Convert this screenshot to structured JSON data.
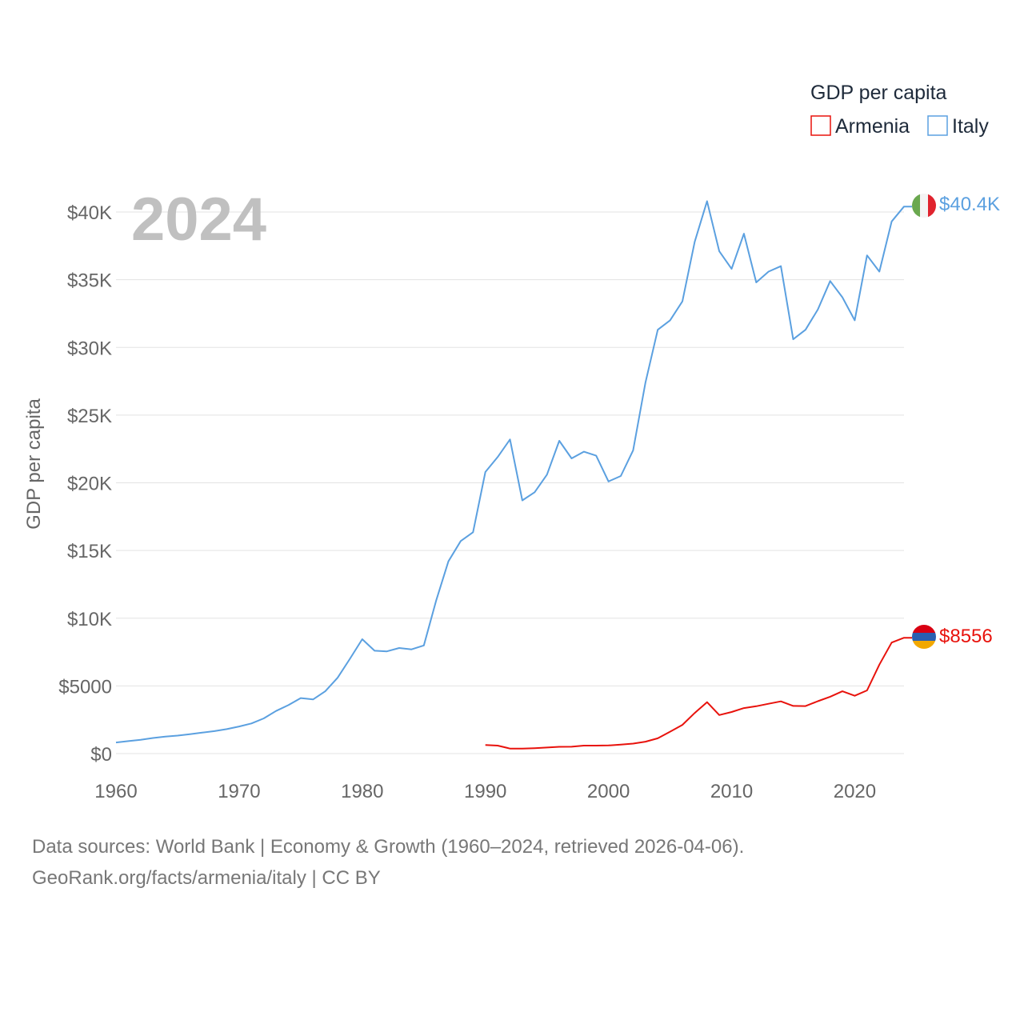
{
  "chart_data": {
    "type": "line",
    "title": "",
    "legend_title": "GDP per capita",
    "xlabel": "",
    "ylabel": "GDP per capita",
    "year_label": "2024",
    "xlim": [
      1960,
      2024
    ],
    "ylim": [
      0,
      40000
    ],
    "x_ticks": [
      1960,
      1970,
      1980,
      1990,
      2000,
      2010,
      2020
    ],
    "x_tick_labels": [
      "1960",
      "1970",
      "1980",
      "1990",
      "2000",
      "2010",
      "2020"
    ],
    "y_ticks": [
      0,
      5000,
      10000,
      15000,
      20000,
      25000,
      30000,
      35000,
      40000
    ],
    "y_tick_labels": [
      "$0",
      "$5000",
      "$10K",
      "$15K",
      "$20K",
      "$25K",
      "$30K",
      "$35K",
      "$40K"
    ],
    "grid": true,
    "legend_position": "top-right",
    "series": [
      {
        "name": "Armenia",
        "color": "#e8120c",
        "end_label": "$8556",
        "flag": "armenia-flag",
        "x": [
          1990,
          1991,
          1992,
          1993,
          1994,
          1995,
          1996,
          1997,
          1998,
          1999,
          2000,
          2001,
          2002,
          2003,
          2004,
          2005,
          2006,
          2007,
          2008,
          2009,
          2010,
          2011,
          2012,
          2013,
          2014,
          2015,
          2016,
          2017,
          2018,
          2019,
          2020,
          2021,
          2022,
          2023,
          2024
        ],
        "values": [
          637,
          590,
          370,
          370,
          400,
          450,
          500,
          510,
          590,
          590,
          600,
          660,
          740,
          880,
          1130,
          1620,
          2120,
          3000,
          3800,
          2850,
          3070,
          3360,
          3500,
          3680,
          3860,
          3520,
          3510,
          3870,
          4200,
          4600,
          4270,
          4670,
          6570,
          8200,
          8556
        ]
      },
      {
        "name": "Italy",
        "color": "#5ba0e0",
        "end_label": "$40.4K",
        "flag": "italy-flag",
        "x": [
          1960,
          1961,
          1962,
          1963,
          1964,
          1965,
          1966,
          1967,
          1968,
          1969,
          1970,
          1971,
          1972,
          1973,
          1974,
          1975,
          1976,
          1977,
          1978,
          1979,
          1980,
          1981,
          1982,
          1983,
          1984,
          1985,
          1986,
          1987,
          1988,
          1989,
          1990,
          1991,
          1992,
          1993,
          1994,
          1995,
          1996,
          1997,
          1998,
          1999,
          2000,
          2001,
          2002,
          2003,
          2004,
          2005,
          2006,
          2007,
          2008,
          2009,
          2010,
          2011,
          2012,
          2013,
          2014,
          2015,
          2016,
          2017,
          2018,
          2019,
          2020,
          2021,
          2022,
          2023,
          2024
        ],
        "values": [
          820,
          920,
          1020,
          1150,
          1260,
          1330,
          1430,
          1550,
          1660,
          1810,
          2000,
          2230,
          2600,
          3150,
          3580,
          4100,
          4000,
          4600,
          5600,
          7000,
          8450,
          7600,
          7550,
          7800,
          7700,
          7990,
          11300,
          14200,
          15700,
          16350,
          20800,
          21900,
          23200,
          18700,
          19300,
          20600,
          23100,
          21800,
          22300,
          22000,
          20100,
          20500,
          22400,
          27400,
          31300,
          32000,
          33400,
          37800,
          40800,
          37100,
          35800,
          38400,
          34800,
          35600,
          36000,
          30600,
          31300,
          32800,
          34900,
          33700,
          32000,
          36800,
          35600,
          39300,
          40400
        ]
      }
    ]
  },
  "footer": {
    "line1": "Data sources: World Bank | Economy & Growth (1960–2024, retrieved 2026-04-06).",
    "line2": "GeoRank.org/facts/armenia/italy | CC BY"
  }
}
